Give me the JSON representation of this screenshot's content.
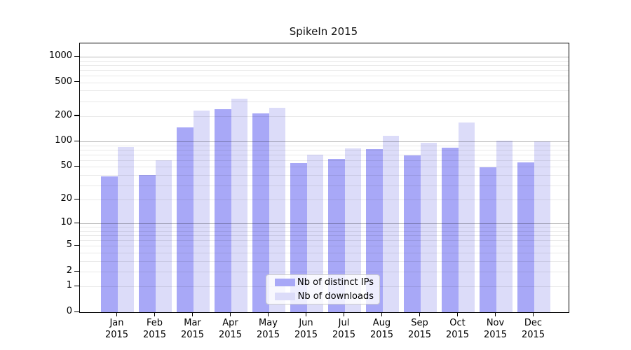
{
  "title": "SpikeIn 2015",
  "legend": {
    "items": [
      {
        "label": "Nb of distinct IPs",
        "color": "#a8a8f7"
      },
      {
        "label": "Nb of downloads",
        "color": "#dcdcf9"
      }
    ]
  },
  "chart_data": {
    "type": "bar",
    "title": "SpikeIn 2015",
    "xlabel": "",
    "ylabel": "",
    "yscale": "log1p",
    "ylim": [
      0,
      1430
    ],
    "grid": "on",
    "legend_position": "lower center",
    "categories": [
      "Jan",
      "Feb",
      "Mar",
      "Apr",
      "May",
      "Jun",
      "Jul",
      "Aug",
      "Sep",
      "Oct",
      "Nov",
      "Dec"
    ],
    "x_year": "2015",
    "yticks": [
      0,
      1,
      2,
      5,
      10,
      20,
      50,
      100,
      200,
      500,
      1000
    ],
    "ytick_labels": [
      "0",
      "1",
      "2",
      "5",
      "10",
      "20",
      "50",
      "100",
      "200",
      "500",
      "1000"
    ],
    "minor_grid_values": [
      1,
      2,
      3,
      4,
      5,
      6,
      7,
      8,
      9,
      20,
      30,
      40,
      50,
      60,
      70,
      80,
      90,
      200,
      300,
      400,
      500,
      600,
      700,
      800,
      900
    ],
    "major_grid_values": [
      10,
      100,
      1000
    ],
    "series": [
      {
        "name": "Nb of distinct IPs",
        "color": "#a8a8f7",
        "values": [
          38,
          40,
          146,
          240,
          214,
          55,
          62,
          82,
          69,
          84,
          49,
          56
        ]
      },
      {
        "name": "Nb of downloads",
        "color": "#dcdcf9",
        "values": [
          87,
          60,
          231,
          318,
          249,
          70,
          83,
          118,
          96,
          167,
          103,
          101
        ]
      }
    ]
  }
}
